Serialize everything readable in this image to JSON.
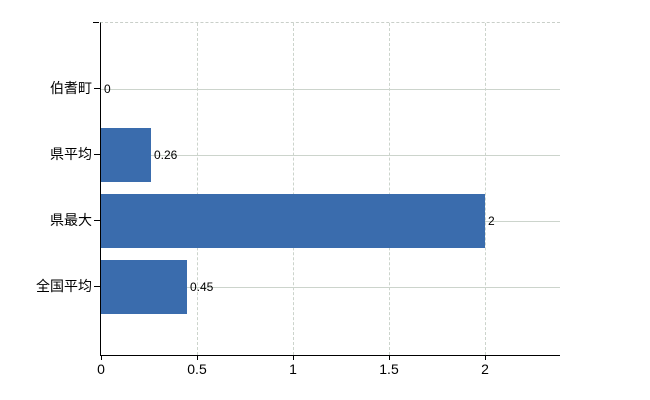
{
  "chart_data": {
    "type": "bar",
    "orientation": "horizontal",
    "title": "",
    "categories": [
      "伯耆町",
      "県平均",
      "県最大",
      "全国平均"
    ],
    "values": [
      0,
      0.26,
      2,
      0.45
    ],
    "value_labels": [
      "0",
      "0.26",
      "2",
      "0.45"
    ],
    "x_ticks": [
      0,
      0.5,
      1,
      1.5,
      2
    ],
    "x_tick_labels": [
      "0",
      "0.5",
      "1",
      "1.5",
      "2"
    ],
    "xlim": [
      0,
      2.39
    ],
    "grid": true,
    "legend": false,
    "bar_color": "#3a6cad",
    "gridline_color": "#ccd4cc",
    "axis_color": "#000000",
    "text_color": "#000000",
    "background_color": "#ffffff"
  }
}
